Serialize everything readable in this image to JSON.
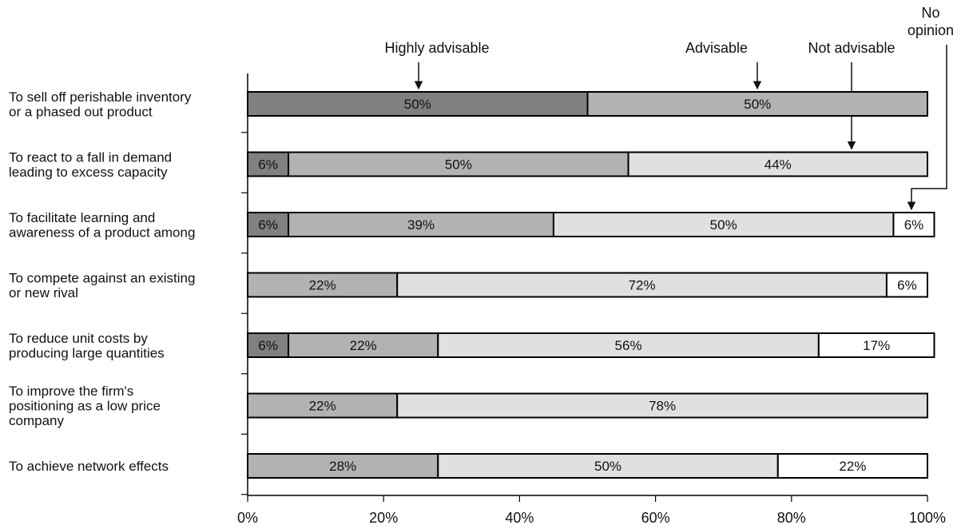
{
  "chart_data": {
    "type": "bar",
    "orientation": "horizontal",
    "stacked": true,
    "categories": [
      [
        "To sell off perishable inventory",
        "or a phased out product"
      ],
      [
        "To react to a fall in demand",
        "leading to excess capacity"
      ],
      [
        "To facilitate learning and",
        "awareness of a product among"
      ],
      [
        "To compete against an existing",
        "or new rival"
      ],
      [
        "To reduce unit costs by",
        "producing large quantities"
      ],
      [
        "To improve the firm's",
        "positioning as a low price",
        "company"
      ],
      [
        "To achieve network effects"
      ]
    ],
    "series": [
      {
        "name": "Highly advisable",
        "color": "#808080",
        "values": [
          50,
          6,
          6,
          0,
          6,
          0,
          0
        ]
      },
      {
        "name": "Advisable",
        "color": "#b2b2b2",
        "values": [
          50,
          50,
          39,
          22,
          22,
          22,
          28
        ]
      },
      {
        "name": "Not advisable",
        "color": "#e0e0e0",
        "values": [
          0,
          44,
          50,
          72,
          56,
          78,
          50
        ]
      },
      {
        "name": "No opinion",
        "color": "#ffffff",
        "values": [
          0,
          0,
          6,
          6,
          17,
          0,
          22
        ]
      }
    ],
    "data_labels": [
      [
        "50%",
        "50%",
        "",
        ""
      ],
      [
        "6%",
        "50%",
        "44%",
        ""
      ],
      [
        "6%",
        "39%",
        "50%",
        "6%"
      ],
      [
        "",
        "22%",
        "72%",
        "6%"
      ],
      [
        "6%",
        "22%",
        "56%",
        "17%"
      ],
      [
        "",
        "22%",
        "78%",
        ""
      ],
      [
        "",
        "28%",
        "50%",
        "22%"
      ]
    ],
    "legend_callouts": [
      {
        "text": [
          "Highly advisable"
        ]
      },
      {
        "text": [
          "Advisable"
        ]
      },
      {
        "text": [
          "Not advisable"
        ]
      },
      {
        "text": [
          "No",
          "opinion"
        ]
      }
    ],
    "x_ticks": [
      "0%",
      "20%",
      "40%",
      "60%",
      "80%",
      "100%"
    ],
    "xlim": [
      0,
      100
    ],
    "xlabel": "",
    "ylabel": "",
    "title": "",
    "grid": false,
    "legend_placement": "top (callout arrows)"
  }
}
